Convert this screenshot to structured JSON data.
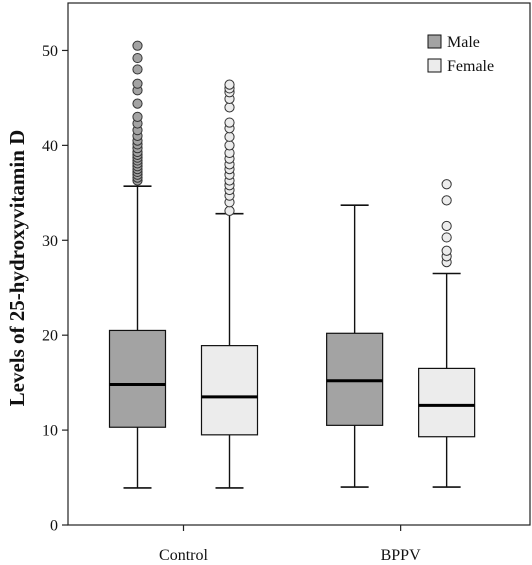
{
  "chart_data": {
    "type": "box",
    "categories": [
      "Control",
      "BPPV"
    ],
    "ylabel": "Levels of 25-hydroxyvitamin D",
    "xlabel": "",
    "ylim": [
      0,
      55
    ],
    "yticks": [
      0,
      10,
      20,
      30,
      40,
      50
    ],
    "grid": false,
    "legend_position": "top-right",
    "series": [
      {
        "name": "Male",
        "color": "#a3a3a3",
        "boxes": [
          {
            "category": "Control",
            "whisker_low": 3.9,
            "q1": 10.3,
            "median": 14.8,
            "q3": 20.5,
            "whisker_high": 35.7,
            "outliers": [
              36.3,
              36.6,
              36.9,
              37.2,
              37.5,
              37.8,
              38.1,
              38.4,
              38.7,
              39.0,
              39.3,
              39.7,
              40.1,
              40.5,
              41.0,
              41.6,
              42.3,
              43.0,
              44.4,
              45.8,
              46.5,
              48.0,
              49.2,
              50.5
            ]
          },
          {
            "category": "BPPV",
            "whisker_low": 4.0,
            "q1": 10.5,
            "median": 15.2,
            "q3": 20.2,
            "whisker_high": 33.7,
            "outliers": []
          }
        ]
      },
      {
        "name": "Female",
        "color": "#ececec",
        "boxes": [
          {
            "category": "Control",
            "whisker_low": 3.9,
            "q1": 9.5,
            "median": 13.5,
            "q3": 18.9,
            "whisker_high": 32.8,
            "outliers": [
              33.1,
              34.0,
              34.7,
              35.3,
              35.8,
              36.3,
              36.9,
              37.5,
              38.0,
              38.6,
              39.2,
              40.0,
              40.9,
              41.8,
              42.4,
              44.0,
              44.9,
              45.6,
              46.0,
              46.4
            ]
          },
          {
            "category": "BPPV",
            "whisker_low": 4.0,
            "q1": 9.3,
            "median": 12.6,
            "q3": 16.5,
            "whisker_high": 26.5,
            "outliers": [
              27.7,
              28.3,
              28.9,
              30.3,
              31.5,
              34.2,
              35.9
            ]
          }
        ]
      }
    ]
  }
}
